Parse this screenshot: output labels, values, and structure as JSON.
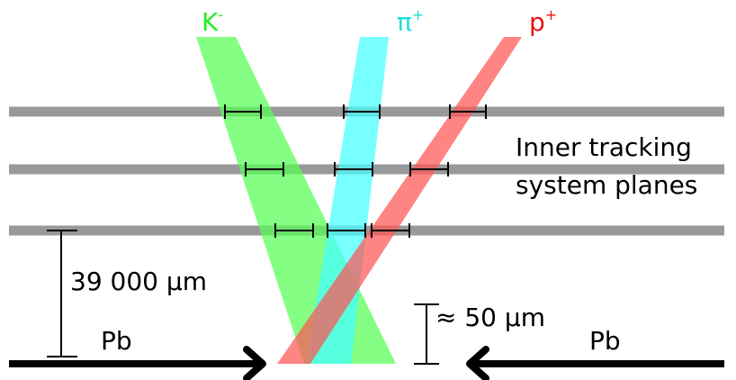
{
  "particles": {
    "kaon": {
      "symbol": "K",
      "charge": "-",
      "color": "#22ee22"
    },
    "pion": {
      "symbol": "π",
      "charge": "+",
      "color": "#22dddd"
    },
    "proton": {
      "symbol": "p",
      "charge": "+",
      "color": "#ee1111"
    }
  },
  "beams": {
    "left": {
      "label": "Pb"
    },
    "right": {
      "label": "Pb"
    }
  },
  "annotations": {
    "detector": {
      "line1": "Inner tracking",
      "line2": "system planes"
    },
    "plane_separation": "39 000 µm",
    "vertex_separation": "≈ 50 µm"
  },
  "colors": {
    "plane": "#999999",
    "kaon_band": "#55ff55",
    "pion_band": "#44ffff",
    "proton_band": "#ff5555",
    "beam": "#000000",
    "text": "#000000"
  }
}
